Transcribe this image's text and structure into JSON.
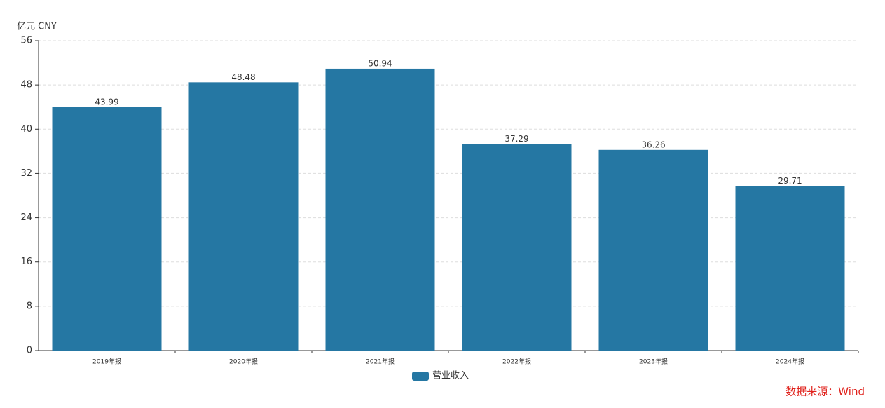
{
  "chart_data": {
    "type": "bar",
    "y_axis_label": "亿元  CNY",
    "categories": [
      "2019年报",
      "2020年报",
      "2021年报",
      "2022年报",
      "2023年报",
      "2024年报"
    ],
    "series": [
      {
        "name": "营业收入",
        "color": "#2577a3",
        "values": [
          43.99,
          48.48,
          50.94,
          37.29,
          36.26,
          29.71
        ]
      }
    ],
    "ylim": [
      0,
      56
    ],
    "yticks": [
      0,
      8,
      16,
      24,
      32,
      40,
      48,
      56
    ],
    "grid": true,
    "source": "数据来源：Wind"
  }
}
